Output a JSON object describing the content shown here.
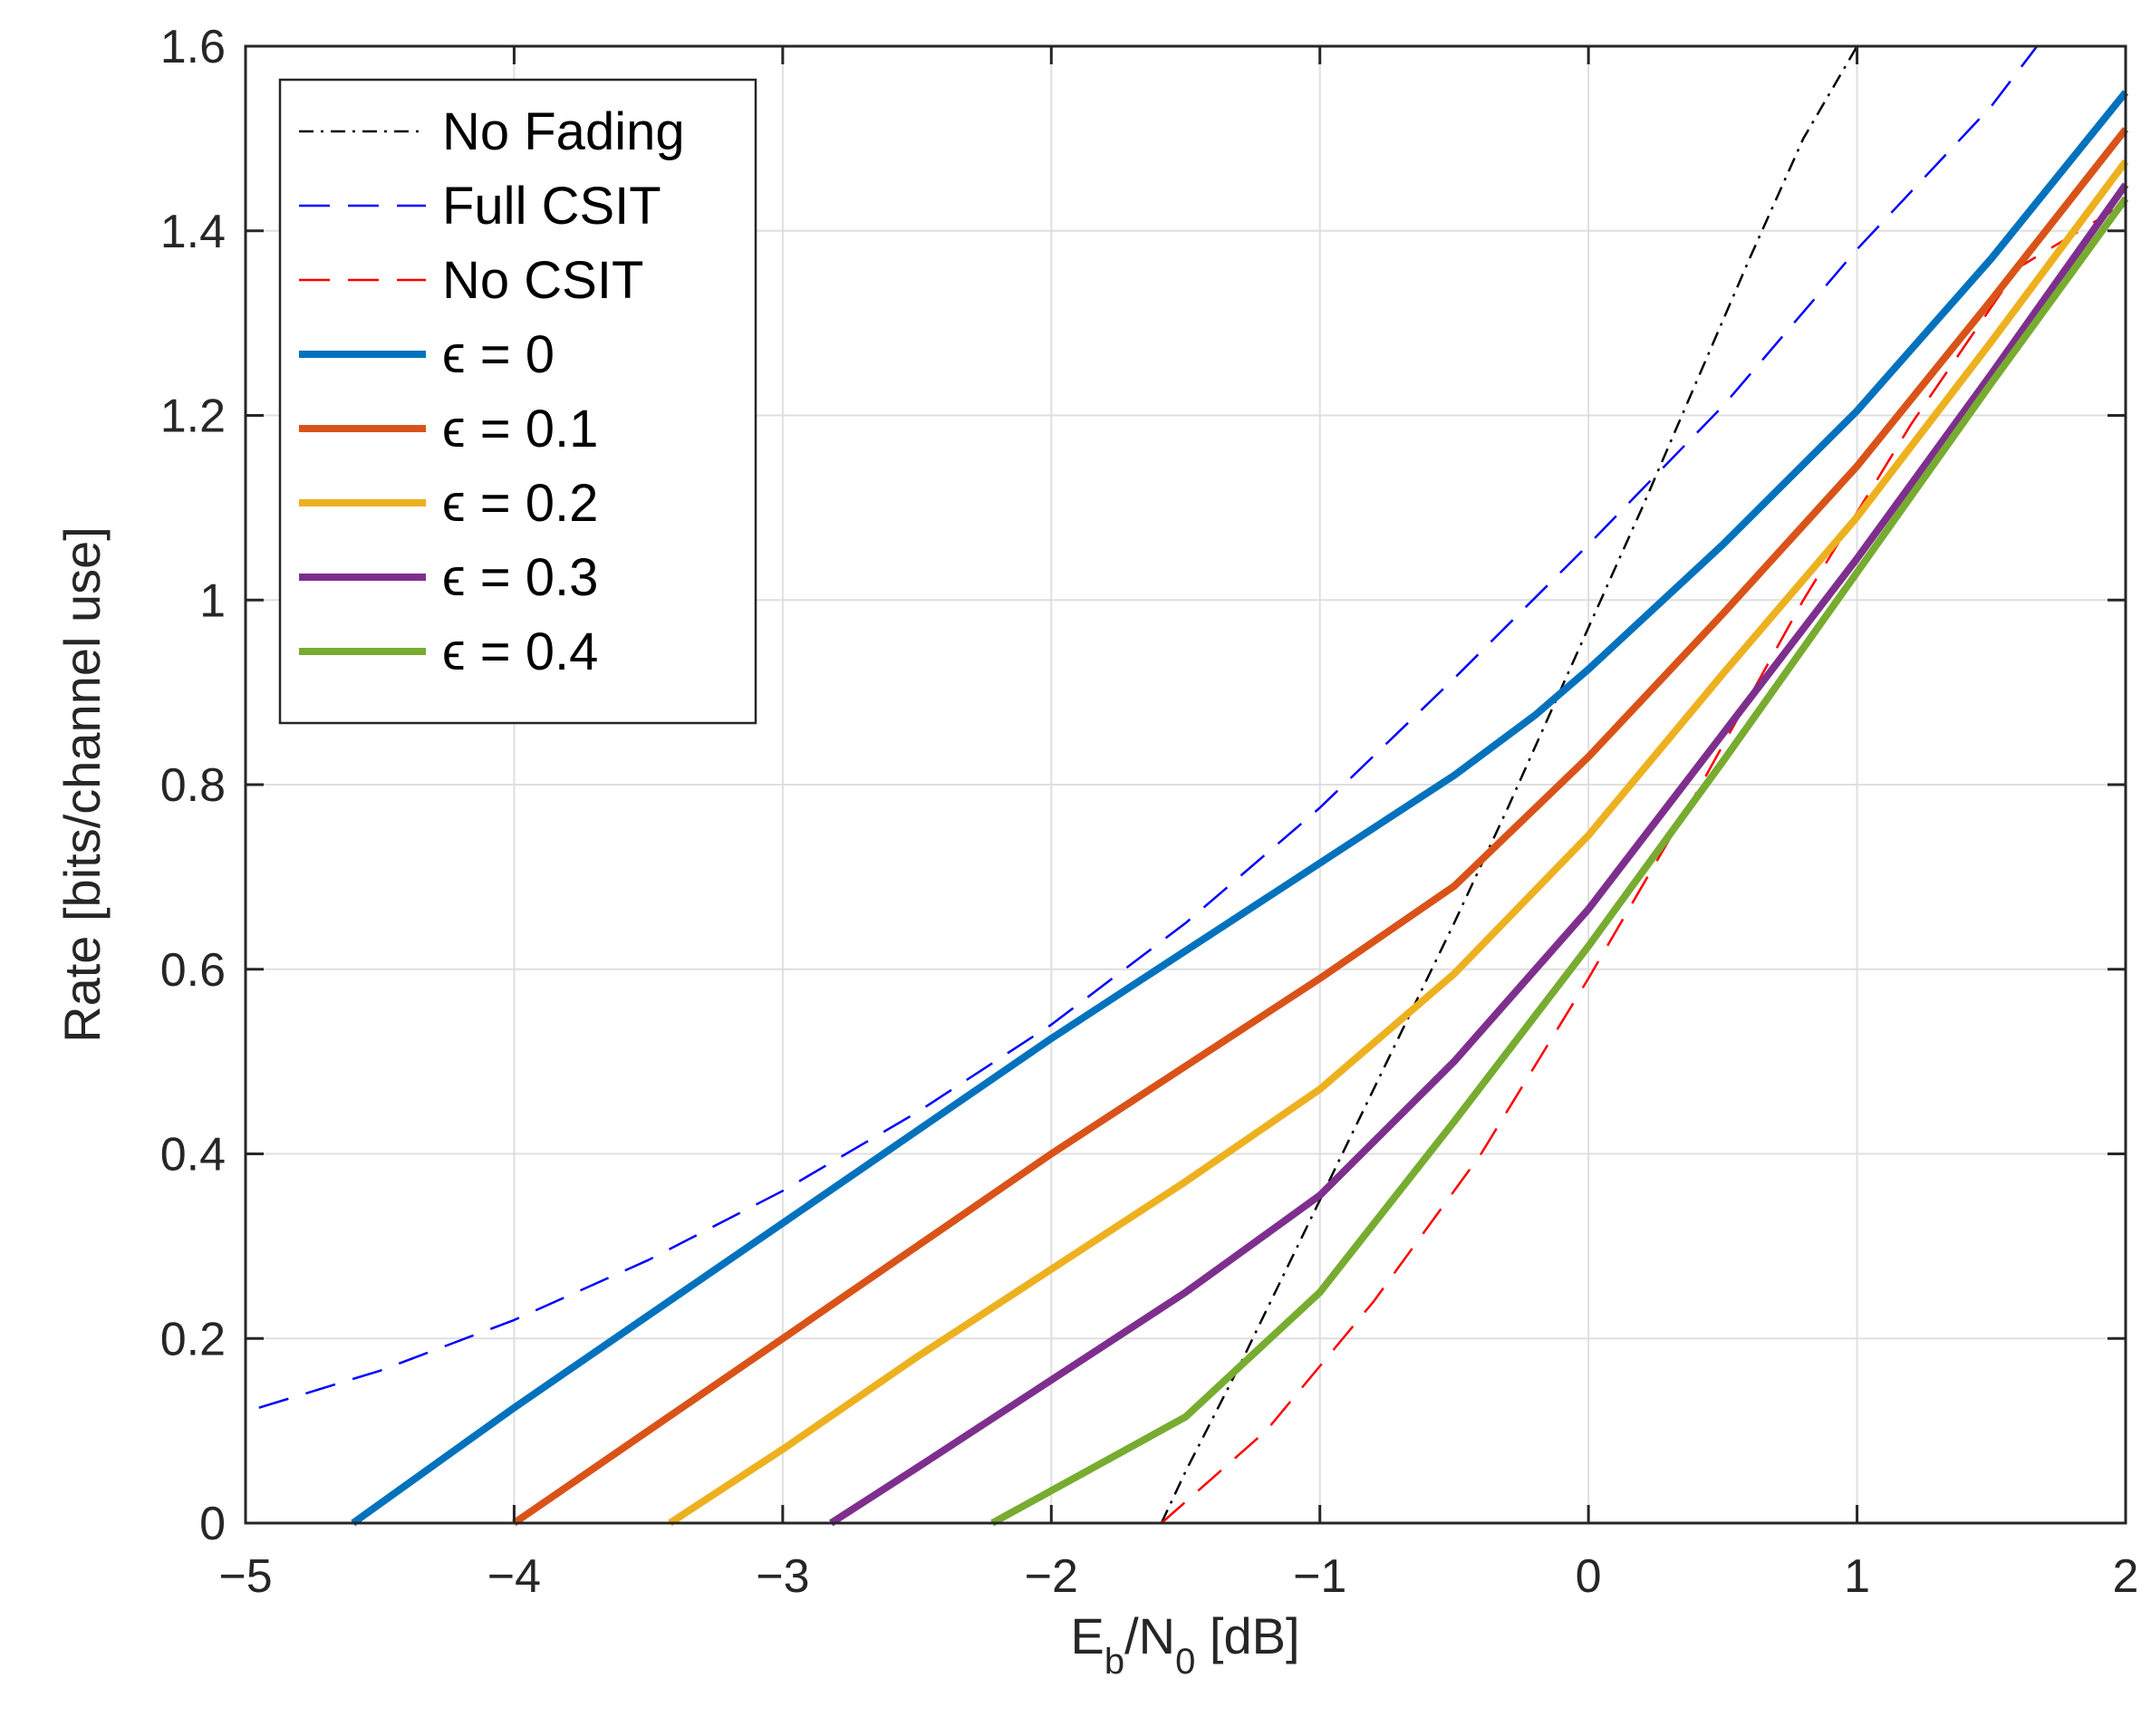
{
  "chart_data": {
    "type": "line",
    "xlabel": "E",
    "xlabel_sub1": "b",
    "xlabel_mid": "/N",
    "xlabel_sub2": "0",
    "xlabel_tail": " [dB]",
    "ylabel": "Rate [bits/channel use]",
    "xlim": [
      -5,
      2
    ],
    "ylim": [
      0,
      1.6
    ],
    "xticks": [
      -5,
      -4,
      -3,
      -2,
      -1,
      0,
      1,
      2
    ],
    "xtick_labels": [
      "−5",
      "−4",
      "−3",
      "−2",
      "−1",
      "0",
      "1",
      "2"
    ],
    "yticks": [
      0,
      0.2,
      0.4,
      0.6,
      0.8,
      1.0,
      1.2,
      1.4,
      1.6
    ],
    "ytick_labels": [
      "0",
      "0.2",
      "0.4",
      "0.6",
      "0.8",
      "1",
      "1.2",
      "1.4",
      "1.6"
    ],
    "grid": true,
    "legend_position": "top-left",
    "series": [
      {
        "name": "No Fading",
        "color": "#000000",
        "style": "dashdot",
        "thin": true,
        "x": [
          -1.59,
          -1.5,
          -1.3,
          -1.1,
          -0.9,
          -0.7,
          -0.5,
          -0.3,
          -0.1,
          0.0,
          0.2,
          0.4,
          0.6,
          0.8,
          1.0,
          1.02
        ],
        "y": [
          0.0,
          0.056,
          0.17,
          0.29,
          0.41,
          0.53,
          0.65,
          0.775,
          0.905,
          0.97,
          1.1,
          1.235,
          1.37,
          1.5,
          1.6,
          1.6
        ]
      },
      {
        "name": "Full CSIT",
        "color": "#0000ff",
        "style": "dashed",
        "thin": true,
        "x": [
          -4.95,
          -4.5,
          -4.0,
          -3.5,
          -3.0,
          -2.5,
          -2.0,
          -1.5,
          -1.0,
          -0.5,
          0.0,
          0.5,
          1.0,
          1.5,
          1.67
        ],
        "y": [
          0.125,
          0.165,
          0.22,
          0.285,
          0.36,
          0.445,
          0.54,
          0.65,
          0.775,
          0.915,
          1.06,
          1.21,
          1.38,
          1.535,
          1.6
        ]
      },
      {
        "name": "No CSIT",
        "color": "#ff0000",
        "style": "dashed",
        "thin": true,
        "x": [
          -1.59,
          -1.2,
          -0.8,
          -0.4,
          0.0,
          0.4,
          0.8,
          1.2,
          1.6,
          2.0
        ],
        "y": [
          0.0,
          0.1,
          0.24,
          0.4,
          0.59,
          0.79,
          1.0,
          1.19,
          1.36,
          1.43
        ]
      },
      {
        "name": "ϵ = 0",
        "color": "#0072bd",
        "style": "solid",
        "thin": false,
        "x": [
          -4.6,
          -4.0,
          -3.5,
          -3.0,
          -2.5,
          -2.0,
          -1.5,
          -1.0,
          -0.5,
          -0.2,
          0.0,
          0.5,
          1.0,
          1.5,
          2.0
        ],
        "y": [
          0.0,
          0.125,
          0.225,
          0.325,
          0.425,
          0.525,
          0.62,
          0.715,
          0.81,
          0.875,
          0.925,
          1.06,
          1.205,
          1.37,
          1.55
        ]
      },
      {
        "name": "ϵ = 0.1",
        "color": "#d95319",
        "style": "solid",
        "thin": false,
        "x": [
          -4.0,
          -3.5,
          -3.0,
          -2.5,
          -2.0,
          -1.5,
          -1.0,
          -0.5,
          0.0,
          0.5,
          1.0,
          1.5,
          2.0
        ],
        "y": [
          0.0,
          0.1,
          0.2,
          0.3,
          0.4,
          0.495,
          0.59,
          0.69,
          0.83,
          0.985,
          1.145,
          1.325,
          1.51
        ]
      },
      {
        "name": "ϵ = 0.2",
        "color": "#edb120",
        "style": "solid",
        "thin": false,
        "x": [
          -3.42,
          -3.0,
          -2.5,
          -2.0,
          -1.5,
          -1.0,
          -0.5,
          0.0,
          0.5,
          1.0,
          1.5,
          2.0
        ],
        "y": [
          0.0,
          0.08,
          0.18,
          0.275,
          0.37,
          0.47,
          0.595,
          0.745,
          0.92,
          1.09,
          1.28,
          1.475
        ]
      },
      {
        "name": "ϵ = 0.3",
        "color": "#7e2f8e",
        "style": "solid",
        "thin": false,
        "x": [
          -2.82,
          -2.5,
          -2.0,
          -1.5,
          -1.0,
          -0.5,
          0.0,
          0.5,
          1.0,
          1.5,
          2.0
        ],
        "y": [
          0.0,
          0.06,
          0.155,
          0.25,
          0.355,
          0.5,
          0.665,
          0.855,
          1.045,
          1.245,
          1.45
        ]
      },
      {
        "name": "ϵ = 0.4",
        "color": "#77ac30",
        "style": "solid",
        "thin": false,
        "x": [
          -2.22,
          -2.0,
          -1.5,
          -1.0,
          -0.5,
          0.0,
          0.5,
          1.0,
          1.5,
          2.0
        ],
        "y": [
          0.0,
          0.035,
          0.115,
          0.25,
          0.435,
          0.625,
          0.825,
          1.03,
          1.235,
          1.435
        ]
      }
    ]
  }
}
